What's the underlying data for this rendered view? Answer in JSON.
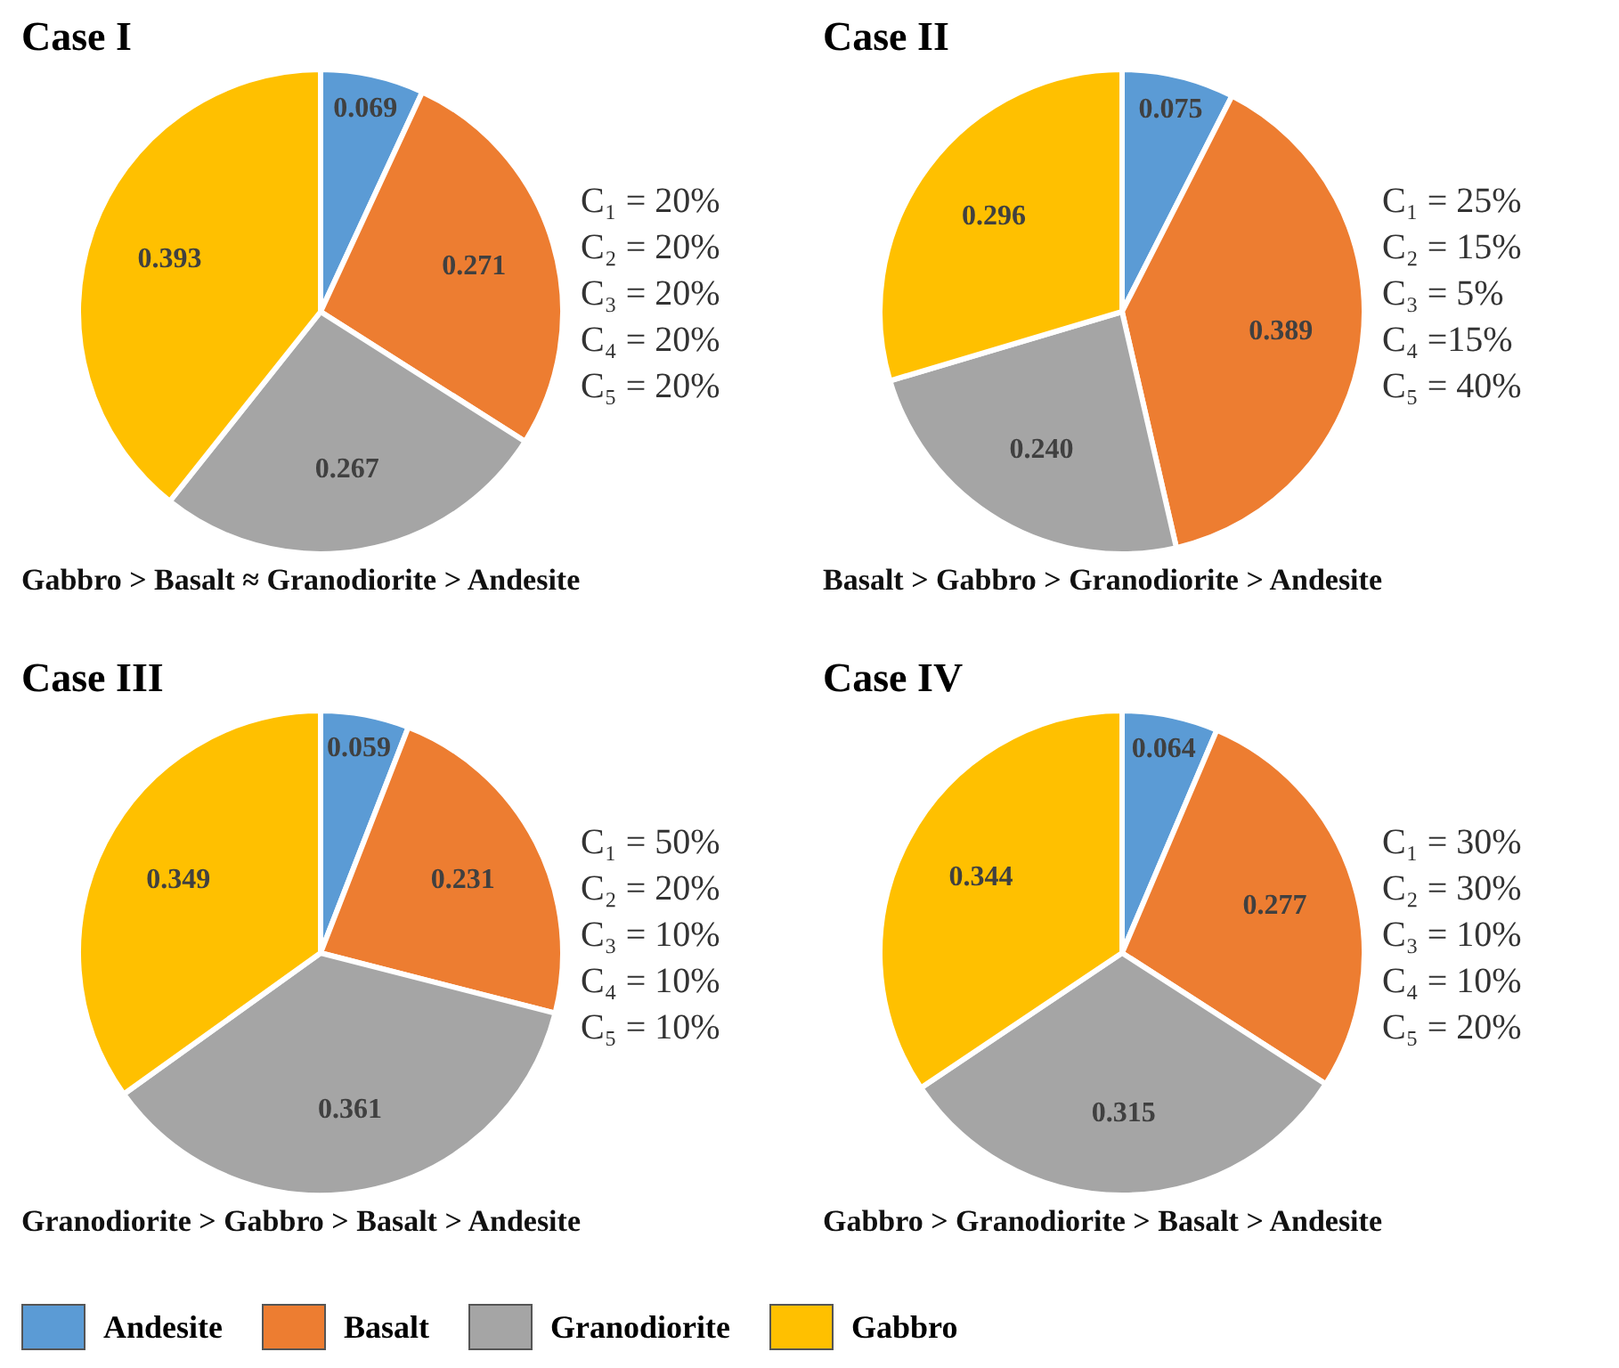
{
  "chart_data": [
    {
      "type": "pie",
      "title": "Case I",
      "categories": [
        "Andesite",
        "Basalt",
        "Granodiorite",
        "Gabbro"
      ],
      "values": [
        0.069,
        0.271,
        0.267,
        0.393
      ],
      "colors": [
        "#5b9bd5",
        "#ed7d31",
        "#a5a5a5",
        "#ffc000"
      ],
      "data_labels": true,
      "legend": "bottom",
      "annotations": [
        "C₁ = 20%",
        "C₂ = 20%",
        "C₃ = 20%",
        "C₄ = 20%",
        "C₅ = 20%",
        "Gabbro > Basalt ≈ Granodiorite > Andesite"
      ]
    },
    {
      "type": "pie",
      "title": "Case II",
      "categories": [
        null,
        null,
        null,
        null
      ],
      "values": [
        0.075,
        0.389,
        0.24,
        0.296
      ],
      "value_labels": [
        "0.075",
        "0.389",
        "0.240",
        "0.296"
      ],
      "colors": [
        "#5b9bd5",
        "#ed7d31",
        "#a5a5a5",
        "#ffc000"
      ],
      "annotations": [
        "C₁ = 25%",
        "C₂ = 15%",
        "C₃ = 5%",
        "C₄ =15%",
        "C₅ = 40%",
        "Basalt > Gabbro > Granodiorite > Andesite"
      ]
    },
    {
      "type": "pie",
      "title": "Case III",
      "categories": [
        null,
        null,
        null,
        null
      ],
      "values": [
        0.059,
        0.231,
        0.361,
        0.349
      ],
      "colors": [
        "#5b9bd5",
        "#ed7d31",
        "#a5a5a5",
        "#ffc000"
      ],
      "data_labels": true,
      "annotations": [
        "C₁ = 50%",
        "C₂ = 20%",
        "C₃ = 10%",
        "C₄ = 10%",
        "C₅ = 10%",
        "Granodiorite > Gabbro > Basalt > Andesite"
      ]
    },
    {
      "type": "pie",
      "title": "Case IV",
      "categories": [
        null,
        null,
        null,
        null
      ],
      "values": [
        0.064,
        0.277,
        0.315,
        0.344
      ],
      "colors": [
        "#5b9bd5",
        "#ed7d31",
        "#a5a5a5",
        "#ffc000"
      ],
      "data_labels": true,
      "annotations": [
        "C₁ = 30%",
        "C₂ = 30%",
        "C₃ = 10%",
        "C₄ = 10%",
        "C₅ = 20%",
        "Gabbro > Granodiorite > Basalt > Andesite"
      ]
    }
  ]
}
